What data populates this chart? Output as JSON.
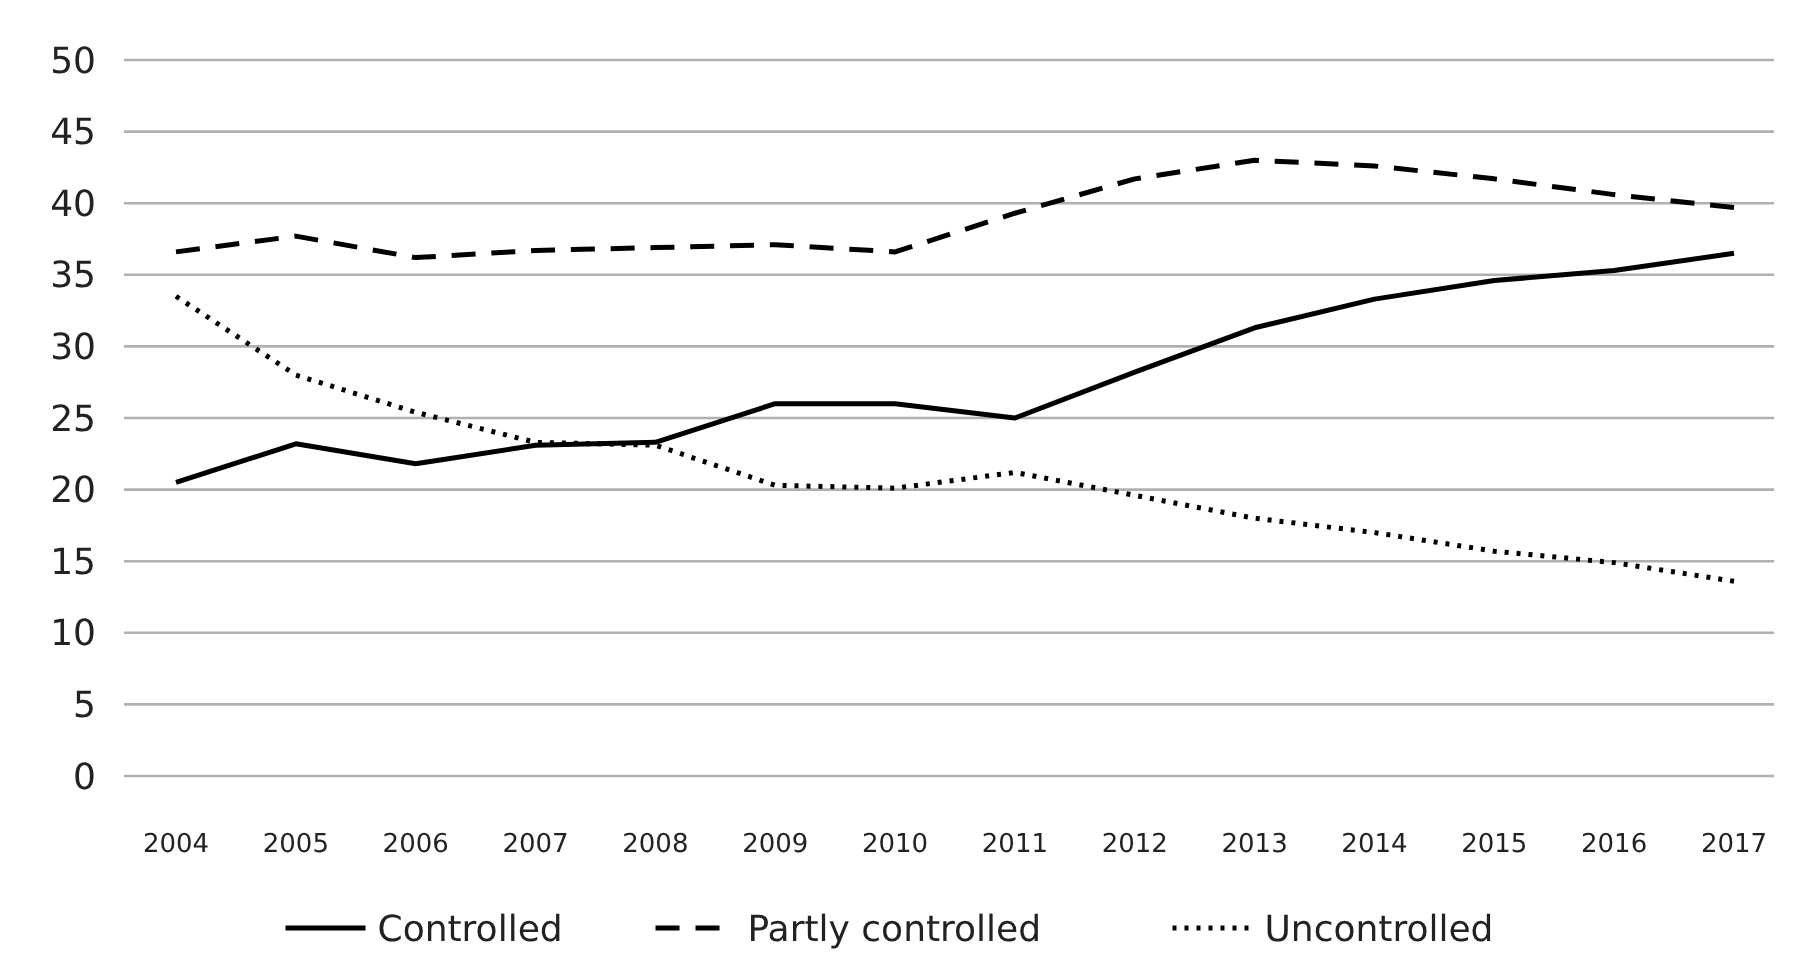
{
  "chart_data": {
    "type": "line",
    "categories": [
      "2004",
      "2005",
      "2006",
      "2007",
      "2008",
      "2009",
      "2010",
      "2011",
      "2012",
      "2013",
      "2014",
      "2015",
      "2016",
      "2017"
    ],
    "ylim": [
      0,
      50
    ],
    "yticks": [
      0,
      5,
      10,
      15,
      20,
      25,
      30,
      35,
      40,
      45,
      50
    ],
    "grid": "y",
    "legend": "bottom",
    "series": [
      {
        "name": "Controlled",
        "color": "#000000",
        "line_style": "solid",
        "values": [
          20.5,
          23.2,
          21.8,
          23.1,
          23.3,
          26.0,
          26.0,
          25.0,
          28.2,
          31.3,
          33.3,
          34.6,
          35.3,
          36.5
        ]
      },
      {
        "name": "Partly controlled",
        "color": "#000000",
        "line_style": "dashed",
        "values": [
          36.6,
          37.7,
          36.2,
          36.7,
          36.9,
          37.1,
          36.6,
          39.3,
          41.7,
          43.0,
          42.6,
          41.7,
          40.6,
          39.7
        ]
      },
      {
        "name": "Uncontrolled",
        "color": "#000000",
        "line_style": "dotted",
        "values": [
          33.5,
          28.0,
          25.4,
          23.3,
          23.1,
          20.3,
          20.1,
          21.2,
          19.6,
          18.0,
          17.0,
          15.7,
          14.9,
          13.6
        ]
      }
    ]
  }
}
